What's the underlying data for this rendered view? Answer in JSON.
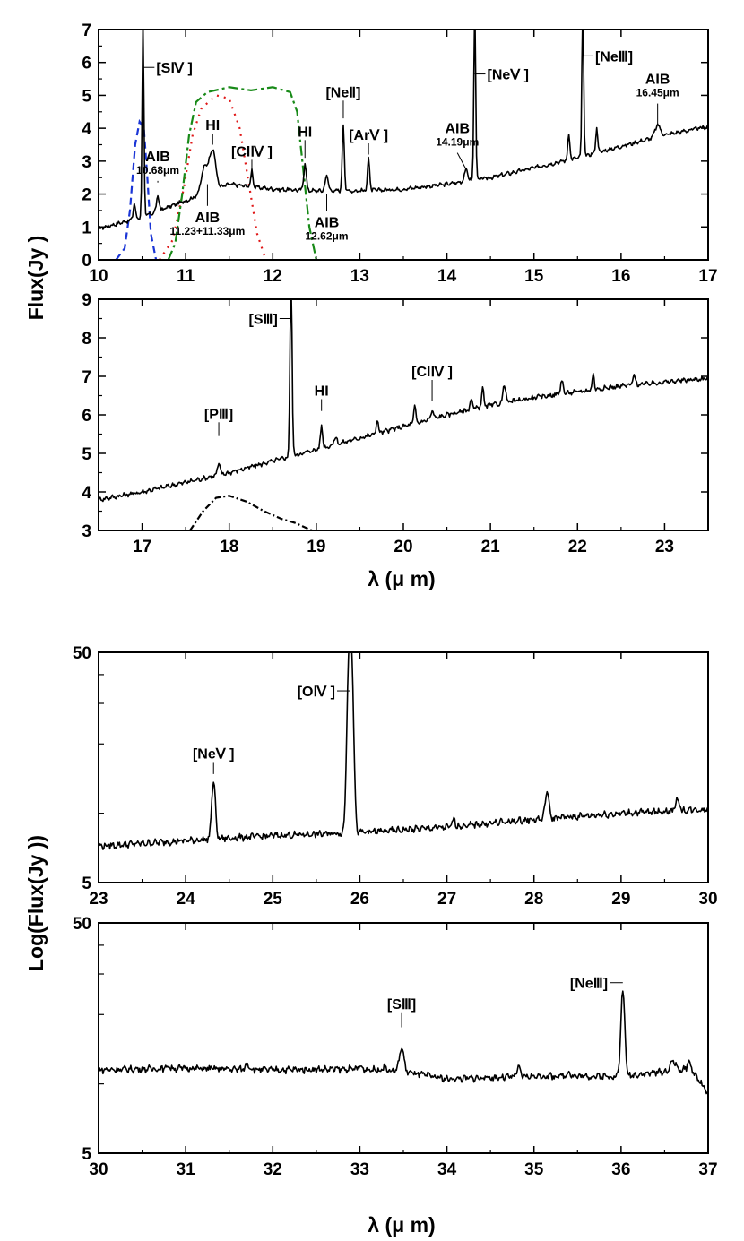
{
  "axis_titles": {
    "top_y": "Flux(Jy )",
    "top_x": "λ (μ  m)",
    "bottom_y": "Log(Flux(Jy ))",
    "bottom_x": "λ (μ  m)"
  },
  "chart_data": [
    {
      "id": "p1",
      "type": "line",
      "yscale": "linear",
      "grid": false,
      "xlim": [
        10,
        17
      ],
      "ylim": [
        0,
        7
      ],
      "xticks": [
        10,
        11,
        12,
        13,
        14,
        15,
        16,
        17
      ],
      "yticks": [
        0,
        1,
        2,
        3,
        4,
        5,
        6,
        7
      ],
      "xlabel": "",
      "ylabel": "Flux(Jy )",
      "continuum": [
        [
          10,
          0.95
        ],
        [
          10.5,
          1.3
        ],
        [
          11,
          1.8
        ],
        [
          11.5,
          2.3
        ],
        [
          12,
          2.15
        ],
        [
          12.5,
          2.1
        ],
        [
          13,
          2.1
        ],
        [
          13.5,
          2.15
        ],
        [
          14,
          2.3
        ],
        [
          14.5,
          2.5
        ],
        [
          15,
          2.8
        ],
        [
          15.5,
          3.1
        ],
        [
          16,
          3.45
        ],
        [
          16.5,
          3.8
        ],
        [
          17,
          4.05
        ]
      ],
      "lines": [
        {
          "x": 10.41,
          "h": 0.5,
          "w": 0.012
        },
        {
          "x": 10.51,
          "h": 6.0,
          "w": 0.01
        },
        {
          "x": 10.68,
          "h": 0.45,
          "w": 0.015
        },
        {
          "x": 11.22,
          "h": 0.8,
          "w": 0.04
        },
        {
          "x": 11.31,
          "h": 1.2,
          "w": 0.035
        },
        {
          "x": 11.76,
          "h": 0.5,
          "w": 0.012
        },
        {
          "x": 12.37,
          "h": 0.85,
          "w": 0.014
        },
        {
          "x": 12.62,
          "h": 0.45,
          "w": 0.018
        },
        {
          "x": 12.81,
          "h": 2.0,
          "w": 0.012
        },
        {
          "x": 13.1,
          "h": 1.0,
          "w": 0.012
        },
        {
          "x": 14.22,
          "h": 0.35,
          "w": 0.02
        },
        {
          "x": 14.32,
          "h": 5.5,
          "w": 0.01
        },
        {
          "x": 15.4,
          "h": 0.8,
          "w": 0.012
        },
        {
          "x": 15.56,
          "h": 4.5,
          "w": 0.01
        },
        {
          "x": 15.72,
          "h": 0.75,
          "w": 0.012
        },
        {
          "x": 16.42,
          "h": 0.35,
          "w": 0.03
        }
      ],
      "filters": [
        {
          "name": "blue-filter",
          "color": "#1a35d6",
          "dash": "8,5",
          "points": [
            [
              10.2,
              0
            ],
            [
              10.3,
              0.35
            ],
            [
              10.36,
              1.5
            ],
            [
              10.42,
              3.5
            ],
            [
              10.47,
              4.2
            ],
            [
              10.52,
              4.0
            ],
            [
              10.56,
              2.5
            ],
            [
              10.6,
              0.8
            ],
            [
              10.66,
              0
            ]
          ]
        },
        {
          "name": "red-filter",
          "color": "#e01818",
          "dash": "2,6",
          "points": [
            [
              10.7,
              0
            ],
            [
              10.85,
              0.6
            ],
            [
              10.98,
              2.2
            ],
            [
              11.08,
              3.8
            ],
            [
              11.18,
              4.6
            ],
            [
              11.35,
              5.0
            ],
            [
              11.5,
              4.9
            ],
            [
              11.62,
              4.0
            ],
            [
              11.72,
              2.4
            ],
            [
              11.82,
              0.8
            ],
            [
              11.92,
              0
            ]
          ]
        },
        {
          "name": "green-filter",
          "color": "#188a18",
          "dash": "11,4,3,4",
          "points": [
            [
              10.8,
              0
            ],
            [
              10.88,
              0.5
            ],
            [
              10.96,
              2.0
            ],
            [
              11.04,
              3.8
            ],
            [
              11.12,
              4.8
            ],
            [
              11.25,
              5.1
            ],
            [
              11.5,
              5.25
            ],
            [
              11.75,
              5.15
            ],
            [
              12.0,
              5.25
            ],
            [
              12.2,
              5.1
            ],
            [
              12.28,
              4.5
            ],
            [
              12.34,
              3.0
            ],
            [
              12.42,
              1.0
            ],
            [
              12.5,
              0
            ]
          ]
        }
      ],
      "annotations": [
        {
          "text": "[SⅣ ]",
          "sub": "",
          "x": 10.51,
          "y": 5.85,
          "lx": 10.58,
          "ly": 5.85,
          "ha": "start"
        },
        {
          "text": "AIB",
          "sub": "10.68μm",
          "x": 10.68,
          "y": 3.0,
          "lx": 10.68,
          "ly": 2.35,
          "ha": "middle"
        },
        {
          "text": "HI",
          "sub": "",
          "x": 11.31,
          "y": 3.95,
          "lx": 11.31,
          "ly": 3.5,
          "ha": "middle"
        },
        {
          "text": "AIB",
          "sub": "11.23+11.33μm",
          "x": 11.25,
          "y": 1.15,
          "lx": 11.25,
          "ly": 2.3,
          "ha": "middle"
        },
        {
          "text": "[ClⅣ ]",
          "sub": "",
          "x": 11.76,
          "y": 3.15,
          "lx": 11.76,
          "ly": 2.5,
          "ha": "middle"
        },
        {
          "text": "HI",
          "sub": "",
          "x": 12.37,
          "y": 3.75,
          "lx": 12.37,
          "ly": 3.1,
          "ha": "middle"
        },
        {
          "text": "AIB",
          "sub": "12.62μm",
          "x": 12.62,
          "y": 1.0,
          "lx": 12.62,
          "ly": 2.0,
          "ha": "middle"
        },
        {
          "text": "[NeⅡ]",
          "sub": "",
          "x": 12.81,
          "y": 4.95,
          "lx": 12.81,
          "ly": 4.3,
          "ha": "middle"
        },
        {
          "text": "[ArⅤ ]",
          "sub": "",
          "x": 13.1,
          "y": 3.65,
          "lx": 13.1,
          "ly": 3.2,
          "ha": "middle"
        },
        {
          "text": "AIB",
          "sub": "14.19μm",
          "x": 14.12,
          "y": 3.85,
          "lx": 14.22,
          "ly": 2.75,
          "ha": "middle"
        },
        {
          "text": "[NeⅤ ]",
          "sub": "",
          "x": 14.32,
          "y": 5.65,
          "lx": 14.38,
          "ly": 5.65,
          "ha": "start"
        },
        {
          "text": "[NeⅢ]",
          "sub": "",
          "x": 15.56,
          "y": 6.2,
          "lx": 15.62,
          "ly": 6.2,
          "ha": "start"
        },
        {
          "text": "AIB",
          "sub": "16.45μm",
          "x": 16.42,
          "y": 5.35,
          "lx": 16.42,
          "ly": 4.1,
          "ha": "middle"
        }
      ]
    },
    {
      "id": "p2",
      "type": "line",
      "yscale": "linear",
      "grid": false,
      "xlim": [
        16.5,
        23.5
      ],
      "ylim": [
        3,
        9
      ],
      "xticks": [
        17,
        18,
        19,
        20,
        21,
        22,
        23
      ],
      "yticks": [
        3,
        4,
        5,
        6,
        7,
        8,
        9
      ],
      "xlabel": "λ (μ  m)",
      "ylabel": "",
      "continuum": [
        [
          16.5,
          3.8
        ],
        [
          17,
          4.0
        ],
        [
          17.5,
          4.25
        ],
        [
          18,
          4.5
        ],
        [
          18.5,
          4.8
        ],
        [
          19,
          5.1
        ],
        [
          19.5,
          5.4
        ],
        [
          20,
          5.7
        ],
        [
          20.5,
          6.0
        ],
        [
          21,
          6.25
        ],
        [
          21.5,
          6.45
        ],
        [
          22,
          6.6
        ],
        [
          22.5,
          6.75
        ],
        [
          23,
          6.85
        ],
        [
          23.5,
          6.95
        ]
      ],
      "lines": [
        {
          "x": 17.88,
          "h": 0.3,
          "w": 0.015
        },
        {
          "x": 18.71,
          "h": 4.6,
          "w": 0.012
        },
        {
          "x": 19.06,
          "h": 0.6,
          "w": 0.012
        },
        {
          "x": 19.22,
          "h": 0.2,
          "w": 0.015
        },
        {
          "x": 19.7,
          "h": 0.35,
          "w": 0.012
        },
        {
          "x": 20.13,
          "h": 0.45,
          "w": 0.012
        },
        {
          "x": 20.33,
          "h": 0.2,
          "w": 0.015
        },
        {
          "x": 20.78,
          "h": 0.25,
          "w": 0.015
        },
        {
          "x": 20.91,
          "h": 0.5,
          "w": 0.012
        },
        {
          "x": 21.16,
          "h": 0.5,
          "w": 0.015
        },
        {
          "x": 21.82,
          "h": 0.35,
          "w": 0.015
        },
        {
          "x": 22.18,
          "h": 0.4,
          "w": 0.012
        },
        {
          "x": 22.65,
          "h": 0.25,
          "w": 0.015
        }
      ],
      "filters": [
        {
          "name": "black-filter",
          "color": "#000000",
          "dash": "7,3,2,3",
          "points": [
            [
              17.55,
              3.0
            ],
            [
              17.7,
              3.5
            ],
            [
              17.85,
              3.85
            ],
            [
              18.0,
              3.9
            ],
            [
              18.2,
              3.75
            ],
            [
              18.4,
              3.5
            ],
            [
              18.6,
              3.3
            ],
            [
              18.75,
              3.2
            ],
            [
              18.95,
              3.0
            ]
          ]
        }
      ],
      "annotations": [
        {
          "text": "[SⅢ]",
          "sub": "",
          "x": 18.71,
          "y": 8.5,
          "lx": 18.64,
          "ly": 8.5,
          "ha": "end"
        },
        {
          "text": "HI",
          "sub": "",
          "x": 19.06,
          "y": 6.5,
          "lx": 19.06,
          "ly": 6.1,
          "ha": "middle"
        },
        {
          "text": "[ClⅣ ]",
          "sub": "",
          "x": 20.33,
          "y": 7.0,
          "lx": 20.33,
          "ly": 6.35,
          "ha": "middle"
        },
        {
          "text": "[PⅢ]",
          "sub": "",
          "x": 17.88,
          "y": 5.9,
          "lx": 17.88,
          "ly": 5.45,
          "ha": "middle"
        }
      ]
    },
    {
      "id": "p3",
      "type": "line",
      "yscale": "log",
      "grid": false,
      "xlim": [
        23,
        30
      ],
      "ylim": [
        5,
        50
      ],
      "xticks": [
        23,
        24,
        25,
        26,
        27,
        28,
        29,
        30
      ],
      "yticks": [
        5,
        50
      ],
      "minor_yticks": [
        10,
        20,
        30,
        40
      ],
      "xlabel": "",
      "ylabel": "Log(Flux(Jy ))",
      "continuum": [
        [
          23,
          7.2
        ],
        [
          24,
          7.6
        ],
        [
          25,
          8.0
        ],
        [
          26,
          8.25
        ],
        [
          27,
          8.7
        ],
        [
          28,
          9.4
        ],
        [
          29,
          10.0
        ],
        [
          30,
          10.4
        ]
      ],
      "lines": [
        {
          "x": 24.32,
          "h": 6.0,
          "w": 0.02
        },
        {
          "x": 25.89,
          "h": 55.0,
          "w": 0.025
        },
        {
          "x": 27.08,
          "h": 0.7,
          "w": 0.015
        },
        {
          "x": 28.15,
          "h": 3.0,
          "w": 0.02
        },
        {
          "x": 29.65,
          "h": 1.3,
          "w": 0.02
        }
      ],
      "filters": [],
      "annotations": [
        {
          "text": "[NeⅤ ]",
          "sub": "",
          "x": 24.32,
          "y": 17.3,
          "lx": 24.32,
          "ly": 14.8,
          "ha": "middle"
        },
        {
          "text": "[OⅣ ]",
          "sub": "",
          "x": 25.89,
          "y": 34.0,
          "lx": 25.8,
          "ly": 34.0,
          "ha": "end"
        }
      ]
    },
    {
      "id": "p4",
      "type": "line",
      "yscale": "log",
      "grid": false,
      "xlim": [
        30,
        37
      ],
      "ylim": [
        5,
        50
      ],
      "xticks": [
        30,
        31,
        32,
        33,
        34,
        35,
        36,
        37
      ],
      "yticks": [
        5,
        50
      ],
      "minor_yticks": [
        10,
        20,
        30,
        40
      ],
      "xlabel": "λ (μ  m)",
      "ylabel": "",
      "continuum": [
        [
          30,
          11.5
        ],
        [
          31,
          11.7
        ],
        [
          32,
          11.5
        ],
        [
          33,
          11.6
        ],
        [
          33.5,
          11.3
        ],
        [
          34,
          10.5
        ],
        [
          35,
          10.8
        ],
        [
          36,
          10.8
        ],
        [
          36.8,
          11.6
        ],
        [
          37,
          9.0
        ]
      ],
      "lines": [
        {
          "x": 30.8,
          "h": 0.3,
          "w": 0.02
        },
        {
          "x": 31.71,
          "h": 0.7,
          "w": 0.02
        },
        {
          "x": 33.0,
          "h": 0.3,
          "w": 0.02
        },
        {
          "x": 33.28,
          "h": 0.5,
          "w": 0.02
        },
        {
          "x": 33.48,
          "h": 3.0,
          "w": 0.025
        },
        {
          "x": 34.82,
          "h": 1.0,
          "w": 0.02
        },
        {
          "x": 35.4,
          "h": 0.5,
          "w": 0.02
        },
        {
          "x": 36.02,
          "h": 14.5,
          "w": 0.02
        },
        {
          "x": 36.6,
          "h": 1.2,
          "w": 0.03
        },
        {
          "x": 36.78,
          "h": 0.8,
          "w": 0.02
        }
      ],
      "filters": [],
      "annotations": [
        {
          "text": "[SⅢ]",
          "sub": "",
          "x": 33.48,
          "y": 21.2,
          "lx": 33.48,
          "ly": 17.6,
          "ha": "middle"
        },
        {
          "text": "[NeⅢ]",
          "sub": "",
          "x": 36.02,
          "y": 27.5,
          "lx": 35.93,
          "ly": 27.5,
          "ha": "end"
        }
      ]
    }
  ]
}
